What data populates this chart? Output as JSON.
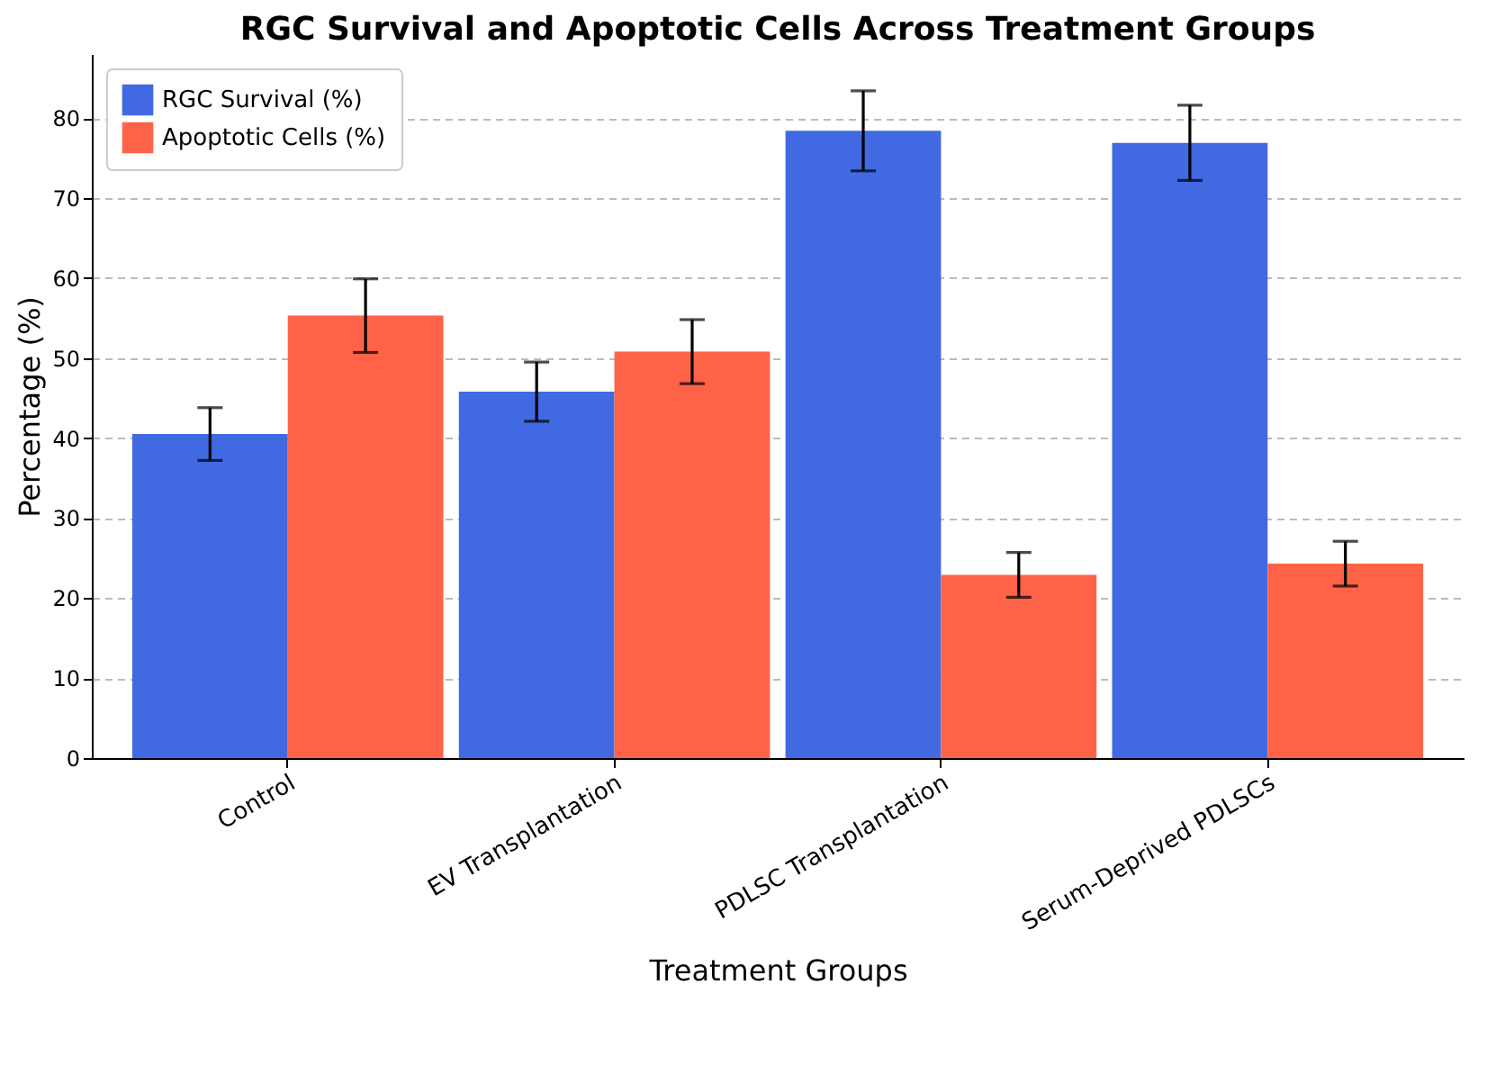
{
  "chart_data": {
    "type": "bar",
    "title": "RGC Survival and Apoptotic Cells Across Treatment Groups",
    "xlabel": "Treatment Groups",
    "ylabel": "Percentage (%)",
    "categories": [
      "Control",
      "EV Transplantation",
      "PDLSC Transplantation",
      "Serum-Deprived PDLSCs"
    ],
    "series": [
      {
        "name": "RGC Survival (%)",
        "color": "#4169e1",
        "values": [
          40.5,
          45.8,
          78.4,
          76.9
        ],
        "errors": [
          3.3,
          3.7,
          5.0,
          4.7
        ]
      },
      {
        "name": "Apoptotic Cells (%)",
        "color": "#ff6347",
        "values": [
          55.3,
          50.8,
          22.9,
          24.3
        ],
        "errors": [
          4.6,
          4.0,
          2.8,
          2.8
        ]
      }
    ],
    "ylim": [
      0,
      88
    ],
    "yticks": [
      0,
      10,
      20,
      30,
      40,
      50,
      60,
      70,
      80
    ],
    "grid": "y",
    "legend": "top left"
  }
}
